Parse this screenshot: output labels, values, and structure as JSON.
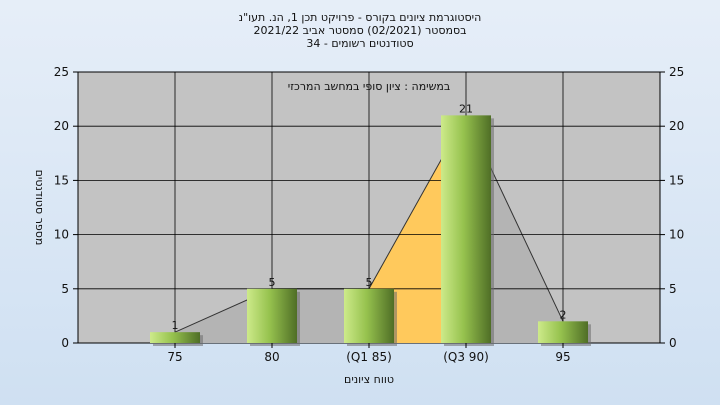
{
  "chart_data": {
    "type": "bar",
    "title_lines": [
      "היסטוגרמת ציונים בקורס - פרויקט תכן 1, הנ. תעו\"נ",
      "בסמסטר  (02/2021)  סמסטר אביב 2021/22",
      "סטודנטים רשומים - 34"
    ],
    "annotation": "במשימה : ציון סופי במחשב המרכזי",
    "categories": [
      "75",
      "80",
      "(Q1 85)",
      "(Q3 90)",
      "95"
    ],
    "values": [
      1,
      5,
      5,
      21,
      2
    ],
    "xlabel": "טווח ציונים",
    "ylabel": "מספר סטודנטים",
    "ylim": [
      0,
      25
    ],
    "yticks": [
      0,
      5,
      10,
      15,
      20,
      25
    ],
    "grid": true,
    "colors": {
      "plot_bg": "#c3c3c3",
      "bar_light": "#cdea8a",
      "bar_mid": "#96c24e",
      "bar_dark": "#4f6e26",
      "quartile_fill": "#ffc95c",
      "trend_fill": "#b4b4b4",
      "grid": "#000000"
    }
  }
}
